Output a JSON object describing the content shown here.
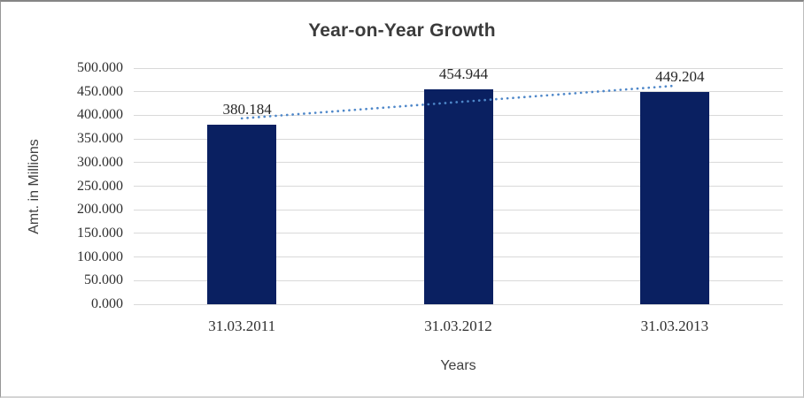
{
  "window": {
    "background": "#ffffff",
    "border_color": "#9a9a9a"
  },
  "chart_data": {
    "type": "bar",
    "title": "Year-on-Year Growth",
    "xlabel": "Years",
    "ylabel": "Amt. in Millions",
    "categories": [
      "31.03.2011",
      "31.03.2012",
      "31.03.2013"
    ],
    "values": [
      380.184,
      454.944,
      449.204
    ],
    "data_labels": [
      "380.184",
      "454.944",
      "449.204"
    ],
    "ylim": [
      0,
      500
    ],
    "ytick_step": 50,
    "ytick_labels": [
      "0.000",
      "50.000",
      "100.000",
      "150.000",
      "200.000",
      "250.000",
      "300.000",
      "350.000",
      "400.000",
      "450.000",
      "500.000"
    ],
    "grid": "horizontal-only",
    "legend": "none",
    "trendline": {
      "type": "linear",
      "style": "dotted",
      "color": "#4e87c9"
    },
    "colors": {
      "bar": "#0a2061",
      "gridline": "#d9d9d9",
      "title_text": "#3b3b3b",
      "axis_title_text": "#3f3f3f",
      "tick_text": "#2f2f2f"
    }
  }
}
